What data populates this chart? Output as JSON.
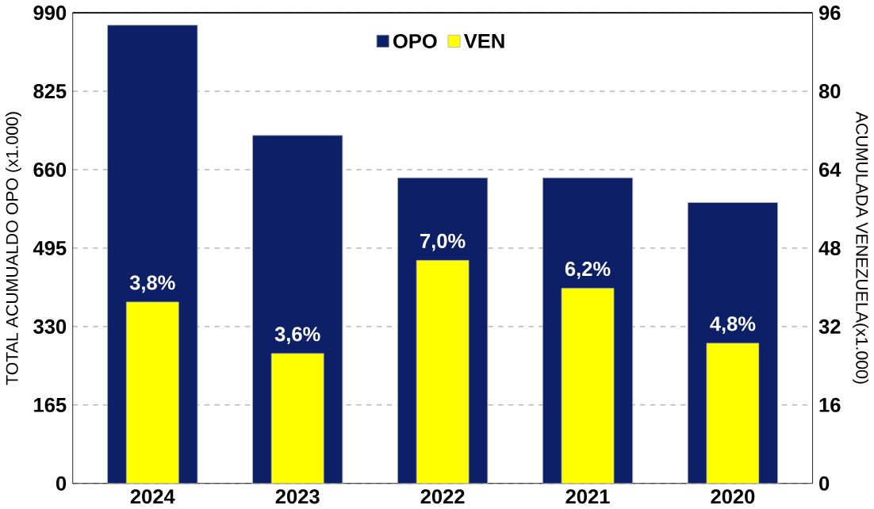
{
  "chart_data": {
    "type": "bar",
    "ylabel": "TOTAL ACUMUALDO OPO (x1.000)",
    "y2label": "ACUMULADA VENEZUELA(x1.000)",
    "categories": [
      "2024",
      "2023",
      "2022",
      "2021",
      "2020"
    ],
    "series": [
      {
        "name": "OPO",
        "color": "#0d1f66",
        "values": [
          964,
          732,
          643,
          643,
          591
        ]
      },
      {
        "name": "VEN",
        "color": "#ffff00",
        "axis": "y2",
        "values": [
          37.0,
          26.5,
          45.5,
          39.8,
          28.6
        ]
      }
    ],
    "annotations": [
      "3,8%",
      "3,6%",
      "7,0%",
      "6,2%",
      "4,8%"
    ],
    "ylim": [
      0,
      990
    ],
    "yticks": [
      0,
      165,
      330,
      495,
      660,
      825,
      990
    ],
    "y2lim": [
      0,
      96
    ],
    "y2ticks": [
      0,
      16,
      32,
      48,
      64,
      80,
      96
    ],
    "grid": "y",
    "legend": "top"
  }
}
